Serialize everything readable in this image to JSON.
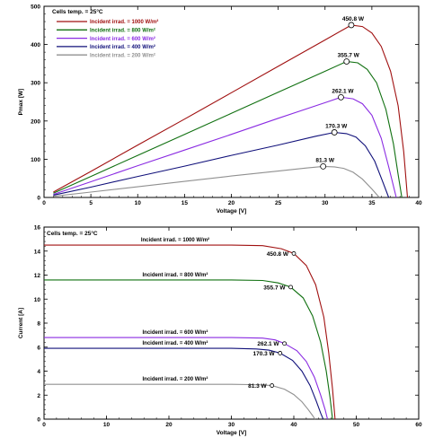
{
  "chart_data": [
    {
      "type": "line",
      "annotation": "Cells temp. = 25°C",
      "xlabel": "Voltage  [V]",
      "ylabel": "Pmax  [W]",
      "xlim": [
        0,
        40
      ],
      "ylim": [
        0,
        500
      ],
      "xticks": [
        "0",
        "5",
        "10",
        "15",
        "20",
        "25",
        "30",
        "35",
        "40"
      ],
      "yticks": [
        "0",
        "100",
        "200",
        "300",
        "400",
        "500"
      ],
      "legend": "top-left",
      "series": [
        {
          "name": "Incident irrad. = 1000 W/m²",
          "color": "#a01010",
          "voc": 38.8,
          "vmp": 32.8,
          "pmax": 450.8,
          "mpp_label": "450.8 W",
          "points": [
            [
              1,
              14
            ],
            [
              5,
              68
            ],
            [
              10,
              137
            ],
            [
              15,
              205
            ],
            [
              20,
              274
            ],
            [
              25,
              343
            ],
            [
              30,
              412
            ],
            [
              32.8,
              450.8
            ],
            [
              34,
              447
            ],
            [
              35,
              430
            ],
            [
              36,
              395
            ],
            [
              37,
              330
            ],
            [
              37.8,
              240
            ],
            [
              38.4,
              120
            ],
            [
              38.8,
              0
            ]
          ]
        },
        {
          "name": "Incident irrad. = 800 W/m²",
          "color": "#107010",
          "voc": 38.2,
          "vmp": 32.3,
          "pmax": 355.7,
          "mpp_label": "355.7 W",
          "points": [
            [
              1,
              11
            ],
            [
              5,
              55
            ],
            [
              10,
              110
            ],
            [
              15,
              165
            ],
            [
              20,
              220
            ],
            [
              25,
              275
            ],
            [
              30,
              330
            ],
            [
              32.3,
              355.7
            ],
            [
              33.5,
              352
            ],
            [
              34.5,
              335
            ],
            [
              35.5,
              300
            ],
            [
              36.5,
              230
            ],
            [
              37.3,
              140
            ],
            [
              37.8,
              60
            ],
            [
              38.2,
              0
            ]
          ]
        },
        {
          "name": "Incident irrad. = 600 W/m²",
          "color": "#8a2be2",
          "voc": 37.6,
          "vmp": 31.7,
          "pmax": 262.1,
          "mpp_label": "262.1 W",
          "points": [
            [
              1,
              8
            ],
            [
              5,
              41
            ],
            [
              10,
              83
            ],
            [
              15,
              124
            ],
            [
              20,
              165
            ],
            [
              25,
              207
            ],
            [
              30,
              248
            ],
            [
              31.7,
              262.1
            ],
            [
              33,
              258
            ],
            [
              34,
              245
            ],
            [
              35,
              215
            ],
            [
              36,
              155
            ],
            [
              36.8,
              80
            ],
            [
              37.6,
              0
            ]
          ]
        },
        {
          "name": "Incident irrad. = 400 W/m²",
          "color": "#10107a",
          "voc": 36.8,
          "vmp": 31.0,
          "pmax": 170.3,
          "mpp_label": "170.3 W",
          "points": [
            [
              1,
              6
            ],
            [
              5,
              27
            ],
            [
              10,
              55
            ],
            [
              15,
              82
            ],
            [
              20,
              110
            ],
            [
              25,
              137
            ],
            [
              29,
              160
            ],
            [
              31.0,
              170.3
            ],
            [
              32.3,
              167
            ],
            [
              33.3,
              158
            ],
            [
              34.3,
              135
            ],
            [
              35.3,
              95
            ],
            [
              36.1,
              45
            ],
            [
              36.8,
              0
            ]
          ]
        },
        {
          "name": "Incident irrad. = 200 W/m²",
          "color": "#909090",
          "voc": 35.8,
          "vmp": 29.8,
          "pmax": 81.3,
          "mpp_label": "81.3 W",
          "points": [
            [
              1,
              3
            ],
            [
              5,
              14
            ],
            [
              10,
              28
            ],
            [
              15,
              42
            ],
            [
              20,
              56
            ],
            [
              25,
              69
            ],
            [
              28,
              77
            ],
            [
              29.8,
              81.3
            ],
            [
              31,
              80
            ],
            [
              32,
              76
            ],
            [
              33,
              66
            ],
            [
              34,
              48
            ],
            [
              35,
              22
            ],
            [
              35.8,
              0
            ]
          ]
        }
      ]
    },
    {
      "type": "line",
      "annotation": "Cells temp. = 25°C",
      "xlabel": "Voltage  [V]",
      "ylabel": "Current  [A]",
      "xlim": [
        0,
        60
      ],
      "ylim": [
        0,
        16
      ],
      "xticks": [
        "0",
        "10",
        "20",
        "30",
        "40",
        "50",
        "60"
      ],
      "yticks": [
        "0",
        "2",
        "4",
        "6",
        "8",
        "10",
        "12",
        "14",
        "16"
      ],
      "series": [
        {
          "name": "Incident irrad. = 1000 W/m²",
          "color": "#a01010",
          "isc": 14.5,
          "mpp": [
            40,
            13.8
          ],
          "mpp_label": "450.8 W",
          "points": [
            [
              0,
              14.5
            ],
            [
              30,
              14.5
            ],
            [
              35,
              14.45
            ],
            [
              38,
              14.2
            ],
            [
              40,
              13.8
            ],
            [
              42,
              12.8
            ],
            [
              43.5,
              11.2
            ],
            [
              44.8,
              8.5
            ],
            [
              45.6,
              5.5
            ],
            [
              46.2,
              2.5
            ],
            [
              46.6,
              0
            ]
          ]
        },
        {
          "name": "Incident irrad. = 800 W/m²",
          "color": "#107010",
          "isc": 11.6,
          "mpp": [
            39.5,
            11.0
          ],
          "mpp_label": "355.7 W",
          "points": [
            [
              0,
              11.6
            ],
            [
              30,
              11.6
            ],
            [
              35,
              11.55
            ],
            [
              37.5,
              11.35
            ],
            [
              39.5,
              11.0
            ],
            [
              41.5,
              10.1
            ],
            [
              43,
              8.6
            ],
            [
              44.3,
              6.4
            ],
            [
              45.2,
              4.0
            ],
            [
              45.8,
              1.8
            ],
            [
              46.2,
              0
            ]
          ]
        },
        {
          "name": "Incident irrad. = 600 W/m²",
          "color": "#8a2be2",
          "isc": 6.8,
          "mpp": [
            38.5,
            6.3
          ],
          "mpp_label": "262.1 W",
          "points": [
            [
              0,
              6.8
            ],
            [
              30,
              6.8
            ],
            [
              35,
              6.75
            ],
            [
              37,
              6.6
            ],
            [
              38.5,
              6.3
            ],
            [
              40.5,
              5.7
            ],
            [
              42,
              4.8
            ],
            [
              43.3,
              3.5
            ],
            [
              44.3,
              2.0
            ],
            [
              45.0,
              0.8
            ],
            [
              45.4,
              0
            ]
          ]
        },
        {
          "name": "Incident irrad. = 400 W/m²",
          "color": "#10107a",
          "isc": 5.9,
          "mpp": [
            37.8,
            5.5
          ],
          "mpp_label": "170.3 W",
          "points": [
            [
              0,
              5.9
            ],
            [
              30,
              5.9
            ],
            [
              34,
              5.85
            ],
            [
              36,
              5.75
            ],
            [
              37.8,
              5.5
            ],
            [
              39.8,
              4.9
            ],
            [
              41.3,
              4.0
            ],
            [
              42.6,
              2.8
            ],
            [
              43.6,
              1.5
            ],
            [
              44.3,
              0.5
            ],
            [
              44.7,
              0
            ]
          ]
        },
        {
          "name": "Incident irrad. = 200 W/m²",
          "color": "#909090",
          "isc": 2.9,
          "mpp": [
            36.5,
            2.8
          ],
          "mpp_label": "81.3 W",
          "points": [
            [
              0,
              2.9
            ],
            [
              30,
              2.9
            ],
            [
              33,
              2.88
            ],
            [
              35,
              2.85
            ],
            [
              36.5,
              2.8
            ],
            [
              38.5,
              2.5
            ],
            [
              40,
              2.05
            ],
            [
              41.3,
              1.45
            ],
            [
              42.3,
              0.8
            ],
            [
              43.0,
              0.3
            ],
            [
              43.4,
              0
            ]
          ]
        }
      ]
    }
  ]
}
